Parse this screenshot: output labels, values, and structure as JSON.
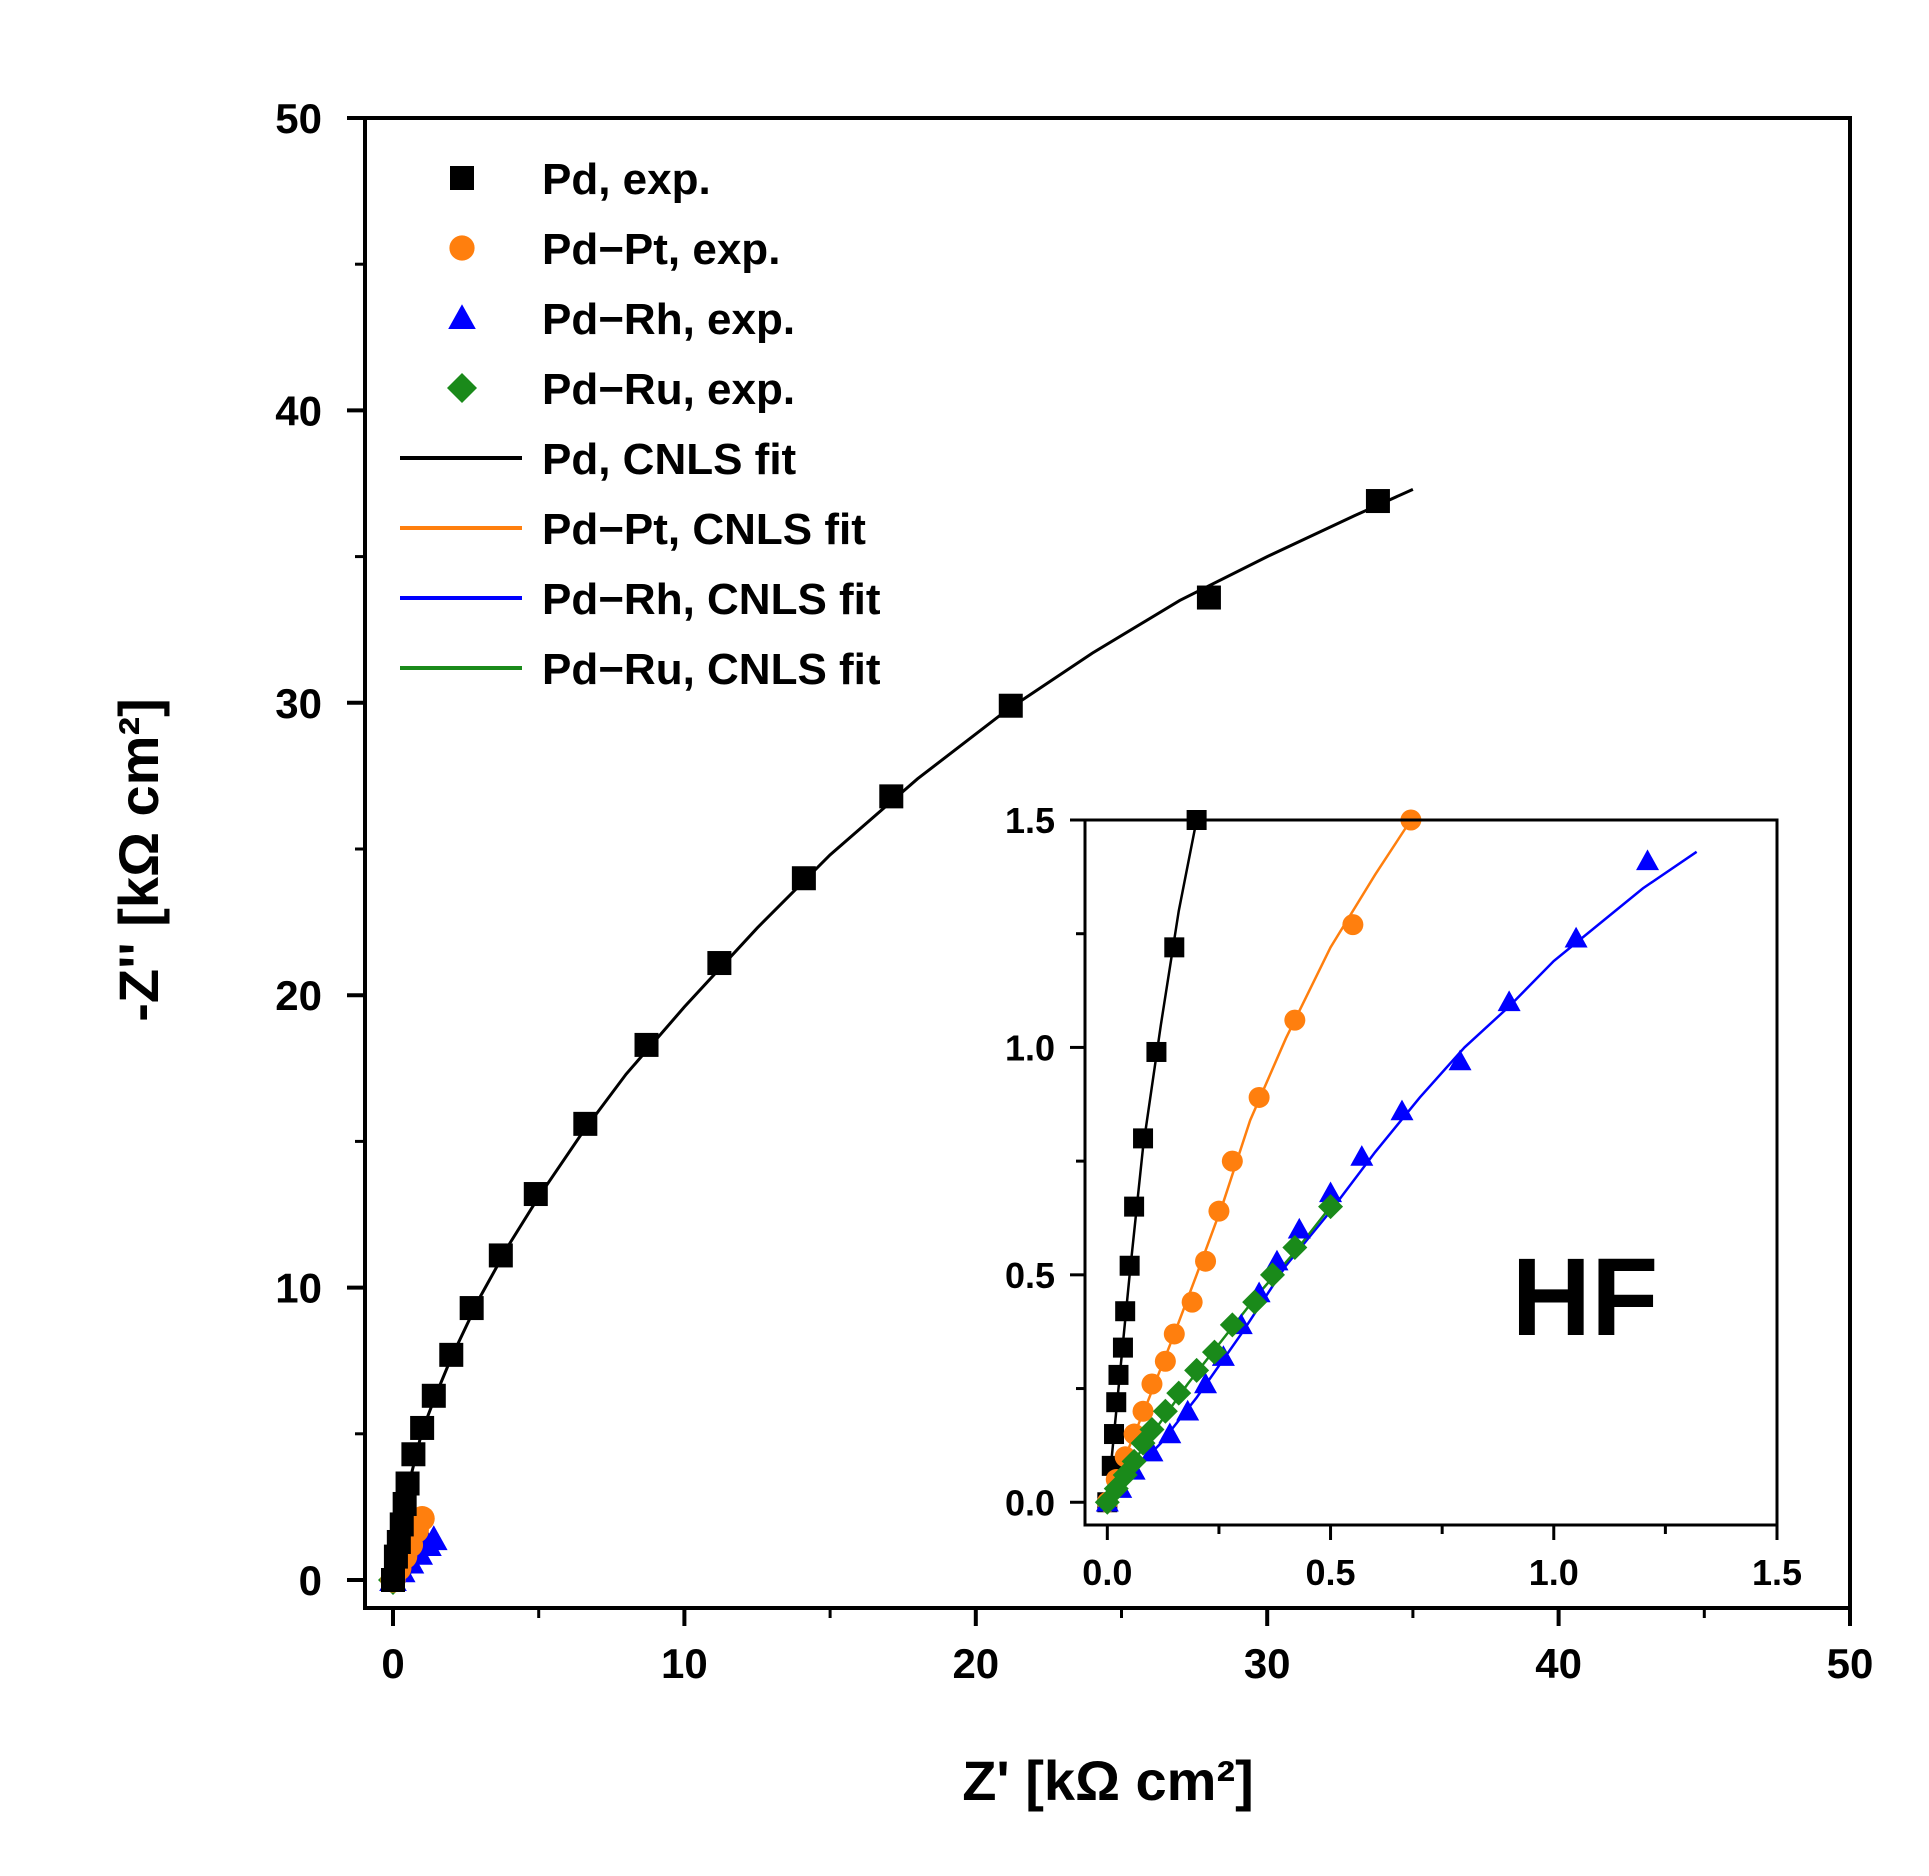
{
  "colors": {
    "Pd": "#000000",
    "Pd-Pt": "#ff7f0e",
    "Pd-Rh": "#0000ff",
    "Pd-Ru": "#1a8a1a"
  },
  "chart_data": [
    {
      "id": "main",
      "type": "scatter",
      "title": "",
      "xlabel": "Z' [kΩ cm²]",
      "ylabel": "-Z'' [kΩ cm²]",
      "xlim": [
        0,
        50
      ],
      "ylim": [
        0,
        50
      ],
      "xticks": [
        0,
        10,
        20,
        30,
        40,
        50
      ],
      "yticks": [
        0,
        10,
        20,
        30,
        40,
        50
      ],
      "xtick_labels": [
        "0",
        "10",
        "20",
        "30",
        "40",
        "50"
      ],
      "ytick_labels": [
        "0",
        "10",
        "20",
        "30",
        "40",
        "50"
      ],
      "legend": {
        "position": "top-left",
        "entries": [
          {
            "label": "Pd, exp.",
            "kind": "marker",
            "series": "Pd",
            "marker": "square"
          },
          {
            "label": "Pd−Pt, exp.",
            "kind": "marker",
            "series": "Pd-Pt",
            "marker": "circle"
          },
          {
            "label": "Pd−Rh, exp.",
            "kind": "marker",
            "series": "Pd-Rh",
            "marker": "triangle"
          },
          {
            "label": "Pd−Ru, exp.",
            "kind": "marker",
            "series": "Pd-Ru",
            "marker": "diamond"
          },
          {
            "label": "Pd, CNLS fit",
            "kind": "line",
            "series": "Pd"
          },
          {
            "label": "Pd−Pt, CNLS fit",
            "kind": "line",
            "series": "Pd-Pt"
          },
          {
            "label": "Pd−Rh, CNLS fit",
            "kind": "line",
            "series": "Pd-Rh"
          },
          {
            "label": "Pd−Ru, CNLS fit",
            "kind": "line",
            "series": "Pd-Ru"
          }
        ]
      },
      "series": [
        {
          "name": "Pd",
          "marker": "square",
          "exp": [
            [
              0,
              0
            ],
            [
              0.1,
              0.8
            ],
            [
              0.2,
              1.3
            ],
            [
              0.3,
              1.9
            ],
            [
              0.4,
              2.6
            ],
            [
              0.5,
              3.3
            ],
            [
              0.7,
              4.3
            ],
            [
              1.0,
              5.2
            ],
            [
              1.4,
              6.3
            ],
            [
              2.0,
              7.7
            ],
            [
              2.7,
              9.3
            ],
            [
              3.7,
              11.1
            ],
            [
              4.9,
              13.2
            ],
            [
              6.6,
              15.6
            ],
            [
              8.7,
              18.3
            ],
            [
              11.2,
              21.1
            ],
            [
              14.1,
              24.0
            ],
            [
              17.1,
              26.8
            ],
            [
              21.2,
              29.9
            ],
            [
              28.0,
              33.6
            ],
            [
              33.8,
              36.9
            ]
          ],
          "fit": [
            [
              0,
              0
            ],
            [
              0.2,
              1.4
            ],
            [
              0.5,
              3.1
            ],
            [
              1.0,
              5.1
            ],
            [
              1.5,
              6.4
            ],
            [
              2.0,
              7.6
            ],
            [
              3.0,
              9.7
            ],
            [
              4.0,
              11.5
            ],
            [
              5.0,
              13.1
            ],
            [
              6.5,
              15.3
            ],
            [
              8.0,
              17.3
            ],
            [
              10.0,
              19.6
            ],
            [
              12.5,
              22.3
            ],
            [
              15.0,
              24.8
            ],
            [
              18.0,
              27.4
            ],
            [
              21.0,
              29.7
            ],
            [
              24.0,
              31.7
            ],
            [
              27.0,
              33.5
            ],
            [
              30.0,
              35.0
            ],
            [
              33.0,
              36.4
            ],
            [
              35.0,
              37.3
            ]
          ]
        },
        {
          "name": "Pd-Pt",
          "marker": "circle",
          "exp": [
            [
              0,
              0
            ],
            [
              0.2,
              0.4
            ],
            [
              0.4,
              0.8
            ],
            [
              0.6,
              1.2
            ],
            [
              0.8,
              1.7
            ],
            [
              1.0,
              2.1
            ]
          ],
          "fit": [
            [
              0,
              0
            ],
            [
              0.3,
              0.6
            ],
            [
              0.6,
              1.2
            ],
            [
              0.9,
              1.8
            ],
            [
              1.1,
              2.2
            ]
          ]
        },
        {
          "name": "Pd-Rh",
          "marker": "triangle",
          "exp": [
            [
              0,
              0
            ],
            [
              0.3,
              0.3
            ],
            [
              0.6,
              0.6
            ],
            [
              0.9,
              0.9
            ],
            [
              1.2,
              1.2
            ],
            [
              1.4,
              1.4
            ]
          ],
          "fit": [
            [
              0,
              0
            ],
            [
              0.4,
              0.4
            ],
            [
              0.8,
              0.8
            ],
            [
              1.2,
              1.2
            ],
            [
              1.5,
              1.5
            ]
          ]
        },
        {
          "name": "Pd-Ru",
          "marker": "diamond",
          "exp": [
            [
              0,
              0
            ],
            [
              0.1,
              0.15
            ],
            [
              0.2,
              0.3
            ],
            [
              0.3,
              0.45
            ],
            [
              0.4,
              0.55
            ],
            [
              0.5,
              0.65
            ]
          ],
          "fit": [
            [
              0,
              0
            ],
            [
              0.2,
              0.3
            ],
            [
              0.4,
              0.55
            ],
            [
              0.55,
              0.7
            ]
          ]
        }
      ]
    },
    {
      "id": "inset",
      "type": "scatter",
      "title": "",
      "xlim": [
        -0.05,
        1.5
      ],
      "ylim": [
        -0.05,
        1.5
      ],
      "xticks": [
        0,
        0.5,
        1.0,
        1.5
      ],
      "yticks": [
        0,
        0.5,
        1.0,
        1.5
      ],
      "xtick_labels": [
        "0.0",
        "0.5",
        "1.0",
        "1.5"
      ],
      "ytick_labels": [
        "0.0",
        "0.5",
        "1.0",
        "1.5"
      ],
      "annotation": "HF",
      "series": [
        {
          "name": "Pd",
          "marker": "square",
          "exp": [
            [
              0,
              0
            ],
            [
              0.01,
              0.08
            ],
            [
              0.015,
              0.15
            ],
            [
              0.02,
              0.22
            ],
            [
              0.025,
              0.28
            ],
            [
              0.035,
              0.34
            ],
            [
              0.04,
              0.42
            ],
            [
              0.05,
              0.52
            ],
            [
              0.06,
              0.65
            ],
            [
              0.08,
              0.8
            ],
            [
              0.11,
              0.99
            ],
            [
              0.15,
              1.22
            ],
            [
              0.2,
              1.5
            ]
          ],
          "fit": [
            [
              0,
              0
            ],
            [
              0.02,
              0.2
            ],
            [
              0.05,
              0.5
            ],
            [
              0.08,
              0.78
            ],
            [
              0.12,
              1.05
            ],
            [
              0.16,
              1.3
            ],
            [
              0.2,
              1.5
            ]
          ]
        },
        {
          "name": "Pd-Pt",
          "marker": "circle",
          "exp": [
            [
              0,
              0
            ],
            [
              0.02,
              0.05
            ],
            [
              0.04,
              0.1
            ],
            [
              0.06,
              0.15
            ],
            [
              0.08,
              0.2
            ],
            [
              0.1,
              0.26
            ],
            [
              0.13,
              0.31
            ],
            [
              0.15,
              0.37
            ],
            [
              0.19,
              0.44
            ],
            [
              0.22,
              0.53
            ],
            [
              0.25,
              0.64
            ],
            [
              0.28,
              0.75
            ],
            [
              0.34,
              0.89
            ],
            [
              0.42,
              1.06
            ],
            [
              0.55,
              1.27
            ],
            [
              0.68,
              1.5
            ]
          ],
          "fit": [
            [
              0,
              0
            ],
            [
              0.04,
              0.1
            ],
            [
              0.09,
              0.22
            ],
            [
              0.15,
              0.37
            ],
            [
              0.2,
              0.5
            ],
            [
              0.26,
              0.66
            ],
            [
              0.32,
              0.84
            ],
            [
              0.4,
              1.02
            ],
            [
              0.5,
              1.22
            ],
            [
              0.6,
              1.38
            ],
            [
              0.68,
              1.5
            ]
          ]
        },
        {
          "name": "Pd-Rh",
          "marker": "triangle",
          "exp": [
            [
              0,
              0
            ],
            [
              0.03,
              0.03
            ],
            [
              0.06,
              0.07
            ],
            [
              0.1,
              0.11
            ],
            [
              0.14,
              0.15
            ],
            [
              0.18,
              0.2
            ],
            [
              0.22,
              0.26
            ],
            [
              0.26,
              0.32
            ],
            [
              0.3,
              0.39
            ],
            [
              0.34,
              0.46
            ],
            [
              0.38,
              0.53
            ],
            [
              0.43,
              0.6
            ],
            [
              0.5,
              0.68
            ],
            [
              0.57,
              0.76
            ],
            [
              0.66,
              0.86
            ],
            [
              0.79,
              0.97
            ],
            [
              0.9,
              1.1
            ],
            [
              1.05,
              1.24
            ],
            [
              1.21,
              1.41
            ]
          ],
          "fit": [
            [
              0,
              0
            ],
            [
              0.05,
              0.06
            ],
            [
              0.12,
              0.13
            ],
            [
              0.2,
              0.23
            ],
            [
              0.3,
              0.37
            ],
            [
              0.4,
              0.52
            ],
            [
              0.5,
              0.64
            ],
            [
              0.6,
              0.77
            ],
            [
              0.7,
              0.89
            ],
            [
              0.8,
              1.0
            ],
            [
              0.9,
              1.09
            ],
            [
              1.0,
              1.19
            ],
            [
              1.1,
              1.27
            ],
            [
              1.2,
              1.35
            ],
            [
              1.32,
              1.43
            ]
          ]
        },
        {
          "name": "Pd-Ru",
          "marker": "diamond",
          "exp": [
            [
              0,
              0
            ],
            [
              0.02,
              0.03
            ],
            [
              0.04,
              0.06
            ],
            [
              0.06,
              0.09
            ],
            [
              0.08,
              0.13
            ],
            [
              0.1,
              0.16
            ],
            [
              0.13,
              0.2
            ],
            [
              0.16,
              0.24
            ],
            [
              0.2,
              0.29
            ],
            [
              0.24,
              0.33
            ],
            [
              0.28,
              0.39
            ],
            [
              0.33,
              0.44
            ],
            [
              0.37,
              0.5
            ],
            [
              0.42,
              0.56
            ],
            [
              0.5,
              0.65
            ]
          ],
          "fit": [
            [
              0,
              0
            ],
            [
              0.04,
              0.06
            ],
            [
              0.1,
              0.15
            ],
            [
              0.18,
              0.26
            ],
            [
              0.26,
              0.36
            ],
            [
              0.34,
              0.46
            ],
            [
              0.42,
              0.55
            ],
            [
              0.5,
              0.65
            ]
          ]
        }
      ]
    }
  ]
}
